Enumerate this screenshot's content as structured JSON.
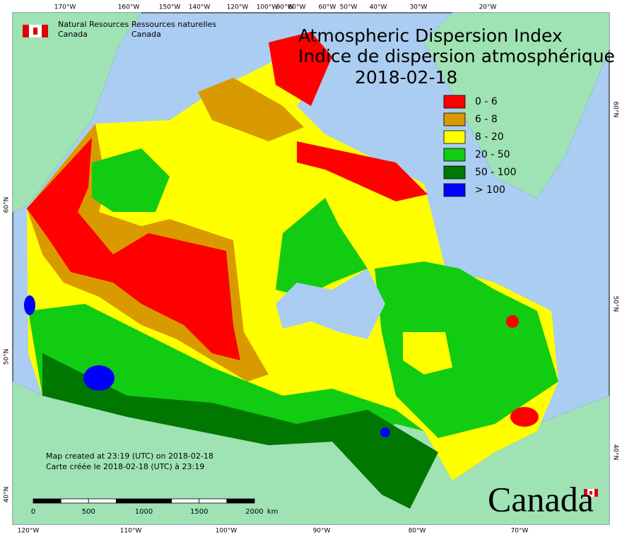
{
  "header": {
    "agency_en": [
      "Natural Resources",
      "Canada"
    ],
    "agency_fr": [
      "Ressources naturelles",
      "Canada"
    ]
  },
  "title": {
    "lines": [
      "Atmospheric Dispersion Index",
      "Indice de dispersion atmosphérique"
    ],
    "date": "2018-02-18"
  },
  "legend": [
    {
      "label": "0 - 6",
      "color": "#ff0000"
    },
    {
      "label": "6 - 8",
      "color": "#d99a00"
    },
    {
      "label": "8 - 20",
      "color": "#ffff00"
    },
    {
      "label": "20 - 50",
      "color": "#11cc11"
    },
    {
      "label": "50 - 100",
      "color": "#007700"
    },
    {
      "label": "> 100",
      "color": "#0000ff"
    }
  ],
  "notes": [
    "Map created at 23:19 (UTC) on 2018-02-18",
    "Carte créée le 2018-02-18 (UTC) à 23:19"
  ],
  "scale_bar": {
    "labels": [
      "0",
      "500",
      "1000",
      "1500",
      "2000"
    ],
    "unit": "km"
  },
  "wordmark": "Canada",
  "graticule": {
    "top": [
      "170°W",
      "160°W",
      "150°W",
      "140°W",
      "120°W",
      "100°W",
      "90°W",
      "80°W",
      "60°W",
      "50°W",
      "40°W",
      "30°W",
      "20°W"
    ],
    "bottom": [
      "120°W",
      "110°W",
      "100°W",
      "90°W",
      "80°W",
      "70°W"
    ],
    "left": [
      "60°N",
      "50°N",
      "40°N"
    ],
    "right": [
      "60°N",
      "50°N",
      "40°N"
    ]
  }
}
